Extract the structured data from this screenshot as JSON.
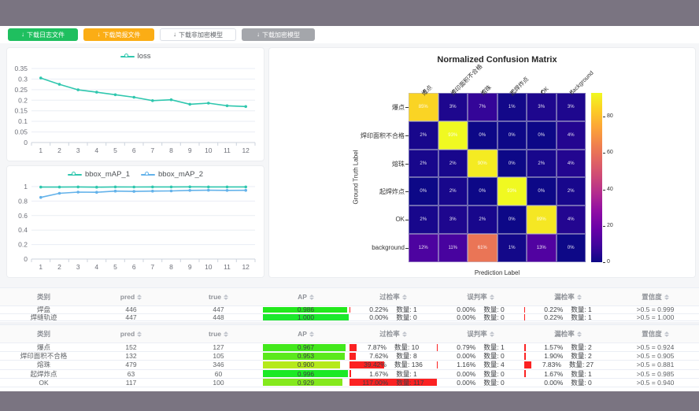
{
  "toolbar": {
    "buttons": [
      {
        "label": "下载日志文件",
        "style": "success"
      },
      {
        "label": "下载简报文件",
        "style": "warning"
      },
      {
        "label": "下载非加密模型",
        "style": "plain"
      },
      {
        "label": "下载加密模型",
        "style": "info"
      }
    ]
  },
  "chart_data": [
    {
      "id": "loss-chart",
      "type": "line",
      "x": [
        1,
        2,
        3,
        4,
        5,
        6,
        7,
        8,
        9,
        10,
        11,
        12
      ],
      "ylim": [
        0,
        0.35
      ],
      "ystep": 0.05,
      "grid": true,
      "legend_position": "top",
      "series": [
        {
          "name": "loss",
          "color": "#2fc7ae",
          "values": [
            0.305,
            0.275,
            0.249,
            0.238,
            0.226,
            0.214,
            0.198,
            0.202,
            0.181,
            0.186,
            0.174,
            0.17
          ]
        }
      ]
    },
    {
      "id": "map-chart",
      "type": "line",
      "x": [
        1,
        2,
        3,
        4,
        5,
        6,
        7,
        8,
        9,
        10,
        11,
        12
      ],
      "ylim": [
        0,
        1
      ],
      "ystep": 0.2,
      "grid": true,
      "legend_position": "top",
      "series": [
        {
          "name": "bbox_mAP_1",
          "color": "#2fc7ae",
          "values": [
            0.994,
            0.993,
            0.996,
            0.992,
            0.996,
            0.995,
            0.996,
            0.996,
            0.997,
            0.996,
            0.996,
            0.996
          ]
        },
        {
          "name": "bbox_mAP_2",
          "color": "#63b2ea",
          "values": [
            0.851,
            0.908,
            0.924,
            0.922,
            0.938,
            0.934,
            0.938,
            0.94,
            0.948,
            0.95,
            0.948,
            0.949
          ]
        }
      ]
    },
    {
      "id": "confusion-matrix",
      "type": "heatmap",
      "title": "Normalized Confusion Matrix",
      "xlabel": "Prediction Label",
      "ylabel": "Ground Truth Label",
      "categories": [
        "爆点",
        "焊印面积不合格",
        "熔珠",
        "起焊炸点",
        "OK",
        "background"
      ],
      "unit": "%",
      "vmax": 93,
      "colorbar_ticks": [
        0,
        20,
        40,
        60,
        80
      ],
      "matrix": [
        [
          85,
          3,
          7,
          1,
          3,
          3
        ],
        [
          2,
          93,
          0,
          0,
          0,
          4
        ],
        [
          2,
          2,
          90,
          0,
          2,
          4
        ],
        [
          0,
          2,
          0,
          93,
          0,
          2
        ],
        [
          2,
          3,
          2,
          0,
          89,
          4
        ],
        [
          12,
          11,
          61,
          1,
          13,
          0
        ]
      ]
    }
  ],
  "tables": {
    "qty_label": "数量:",
    "headers": [
      {
        "label": "类别",
        "sortable": false
      },
      {
        "label": "pred",
        "sortable": true
      },
      {
        "label": "true",
        "sortable": true
      },
      {
        "label": "AP",
        "sortable": true
      },
      {
        "label": "过检率",
        "sortable": true
      },
      {
        "label": "误判率",
        "sortable": true
      },
      {
        "label": "漏检率",
        "sortable": true
      },
      {
        "label": "置信度",
        "sortable": true
      }
    ],
    "groups": [
      {
        "rows": [
          {
            "category": "焊盘",
            "pred": "446",
            "true": "447",
            "ap": "0.986",
            "overkill": {
              "pct": "0.22",
              "qty": "1"
            },
            "misjudge": {
              "pct": "0.00",
              "qty": "0"
            },
            "miss": {
              "pct": "0.22",
              "qty": "1"
            },
            "confidence": ">0.5 = 0.999"
          },
          {
            "category": "焊缝轨迹",
            "pred": "447",
            "true": "448",
            "ap": "1.000",
            "overkill": {
              "pct": "0.00",
              "qty": "0"
            },
            "misjudge": {
              "pct": "0.00",
              "qty": "0"
            },
            "miss": {
              "pct": "0.22",
              "qty": "1"
            },
            "confidence": ">0.5 = 1.000"
          }
        ]
      },
      {
        "rows": [
          {
            "category": "爆点",
            "pred": "152",
            "true": "127",
            "ap": "0.967",
            "overkill": {
              "pct": "7.87",
              "qty": "10"
            },
            "misjudge": {
              "pct": "0.79",
              "qty": "1"
            },
            "miss": {
              "pct": "1.57",
              "qty": "2"
            },
            "confidence": ">0.5 = 0.924"
          },
          {
            "category": "焊印面积不合格",
            "pred": "132",
            "true": "105",
            "ap": "0.953",
            "overkill": {
              "pct": "7.62",
              "qty": "8"
            },
            "misjudge": {
              "pct": "0.00",
              "qty": "0"
            },
            "miss": {
              "pct": "1.90",
              "qty": "2"
            },
            "confidence": ">0.5 = 0.905"
          },
          {
            "category": "熔珠",
            "pred": "479",
            "true": "346",
            "ap": "0.900",
            "overkill": {
              "pct": "39.42",
              "qty": "136"
            },
            "misjudge": {
              "pct": "1.16",
              "qty": "4"
            },
            "miss": {
              "pct": "7.83",
              "qty": "27"
            },
            "confidence": ">0.5 = 0.881"
          },
          {
            "category": "起焊炸点",
            "pred": "63",
            "true": "60",
            "ap": "0.996",
            "overkill": {
              "pct": "1.67",
              "qty": "1"
            },
            "misjudge": {
              "pct": "0.00",
              "qty": "0"
            },
            "miss": {
              "pct": "1.67",
              "qty": "1"
            },
            "confidence": ">0.5 = 0.985"
          },
          {
            "category": "OK",
            "pred": "117",
            "true": "100",
            "ap": "0.929",
            "overkill": {
              "pct": "117.00",
              "qty": "117"
            },
            "misjudge": {
              "pct": "0.00",
              "qty": "0"
            },
            "miss": {
              "pct": "0.00",
              "qty": "0"
            },
            "confidence": ">0.5 = 0.940"
          }
        ]
      }
    ]
  }
}
